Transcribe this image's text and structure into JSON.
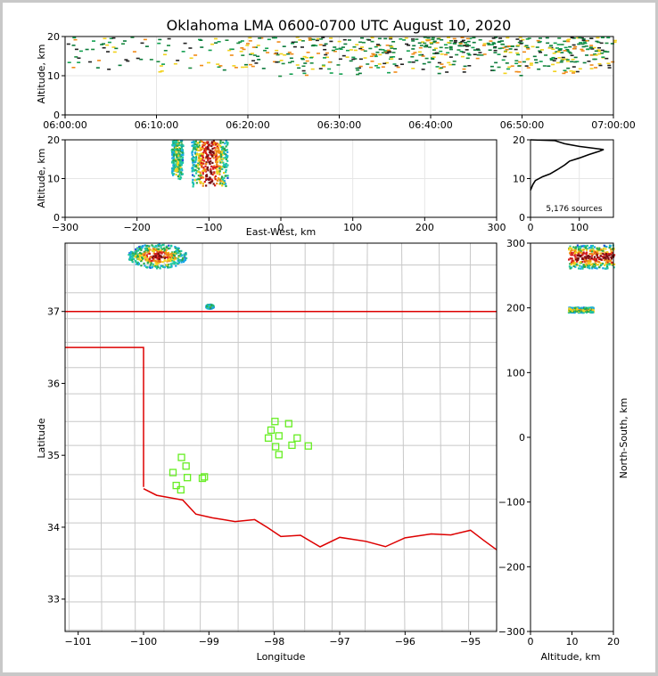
{
  "figure": {
    "title": "Oklahoma LMA 0600-0700 UTC August 10, 2020"
  },
  "colors": {
    "state_line": "#dd0000",
    "county_line": "#c8c8c8",
    "station": "#66ee22",
    "grid": "#e6e6e6",
    "density": [
      "#1a4fd6",
      "#19a6e8",
      "#21c8a0",
      "#2aa84a",
      "#f2d21c",
      "#f08a16",
      "#d81e1e",
      "#7a1010"
    ]
  },
  "chart_data": [
    {
      "id": "time-height",
      "type": "scatter",
      "title": "",
      "ylabel": "Altitude, km",
      "xlabel": "",
      "xlim": [
        "06:00:00",
        "07:00:00"
      ],
      "ylim": [
        0,
        20
      ],
      "x_ticks": [
        "06:00:00",
        "06:10:00",
        "06:20:00",
        "06:30:00",
        "06:40:00",
        "06:50:00",
        "07:00:00"
      ],
      "y_ticks": [
        0,
        10,
        20
      ],
      "grid": true,
      "activity": "sources between 10 and 20 km, sparse before 06:20, dense from 06:30 to 07:00"
    },
    {
      "id": "east-west-height",
      "type": "heatmap",
      "xlabel": "East-West, km",
      "ylabel": "Altitude, km",
      "xlim": [
        -300,
        300
      ],
      "ylim": [
        0,
        20
      ],
      "x_ticks": [
        -300,
        -200,
        -100,
        0,
        100,
        200,
        300
      ],
      "y_ticks": [
        0,
        10,
        20
      ],
      "grid": true,
      "clusters": [
        {
          "x_center": -145,
          "x_halfwidth": 8,
          "z_min": 10,
          "z_max": 20,
          "intensity": 0.35
        },
        {
          "x_center": -100,
          "x_halfwidth": 25,
          "z_min": 8,
          "z_max": 20,
          "intensity": 0.9
        }
      ]
    },
    {
      "id": "altitude-histogram",
      "type": "line",
      "note": "5,176 sources",
      "xlim": [
        0,
        170
      ],
      "ylim": [
        0,
        20
      ],
      "x_ticks": [
        0,
        100
      ],
      "y_ticks": [
        0,
        10,
        20
      ],
      "points": [
        [
          0,
          7
        ],
        [
          5,
          8.5
        ],
        [
          10,
          9.5
        ],
        [
          25,
          10.5
        ],
        [
          40,
          11.2
        ],
        [
          55,
          12.3
        ],
        [
          70,
          13.5
        ],
        [
          80,
          14.5
        ],
        [
          100,
          15.3
        ],
        [
          120,
          16.2
        ],
        [
          140,
          17
        ],
        [
          150,
          17.5
        ],
        [
          100,
          18.3
        ],
        [
          70,
          19
        ],
        [
          50,
          19.8
        ],
        [
          0,
          20
        ]
      ]
    },
    {
      "id": "plan-view",
      "type": "scatter",
      "xlabel": "Longitude",
      "ylabel": "Latitude",
      "xlim": [
        -101.2,
        -94.6
      ],
      "ylim": [
        32.55,
        37.95
      ],
      "x_ticks": [
        -101,
        -100,
        -99,
        -98,
        -97,
        -96,
        -95
      ],
      "y_ticks": [
        33,
        34,
        35,
        36,
        37
      ],
      "clusters": [
        {
          "lon": -99.8,
          "lat": 37.78,
          "lon_halfwidth": 0.45,
          "lat_halfwidth": 0.17,
          "intensity": 0.9
        },
        {
          "lon": -99.0,
          "lat": 37.08,
          "lon_halfwidth": 0.06,
          "lat_halfwidth": 0.03,
          "intensity": 0.5
        }
      ],
      "stations": [
        [
          -99.42,
          34.97
        ],
        [
          -99.35,
          34.85
        ],
        [
          -99.55,
          34.76
        ],
        [
          -99.33,
          34.69
        ],
        [
          -99.5,
          34.58
        ],
        [
          -99.43,
          34.52
        ],
        [
          -99.07,
          34.7
        ],
        [
          -99.1,
          34.68
        ],
        [
          -97.99,
          35.47
        ],
        [
          -98.05,
          35.35
        ],
        [
          -98.09,
          35.24
        ],
        [
          -97.93,
          35.27
        ],
        [
          -97.78,
          35.44
        ],
        [
          -97.65,
          35.24
        ],
        [
          -97.73,
          35.14
        ],
        [
          -97.48,
          35.13
        ],
        [
          -97.98,
          35.12
        ],
        [
          -97.93,
          35.01
        ]
      ]
    },
    {
      "id": "north-south-height",
      "type": "heatmap",
      "xlabel": "Altitude, km",
      "ylabel": "North-South, km",
      "xlim": [
        0,
        20
      ],
      "ylim": [
        -300,
        300
      ],
      "x_ticks": [
        0,
        10,
        20
      ],
      "y_ticks": [
        -300,
        -200,
        -100,
        0,
        100,
        200,
        300
      ],
      "clusters": [
        {
          "z_center": 15,
          "ns_center": 280,
          "z_halfwidth": 6,
          "ns_halfwidth": 18,
          "intensity": 0.9
        },
        {
          "z_center": 12,
          "ns_center": 198,
          "z_halfwidth": 3,
          "ns_halfwidth": 4,
          "intensity": 0.5
        }
      ]
    }
  ]
}
